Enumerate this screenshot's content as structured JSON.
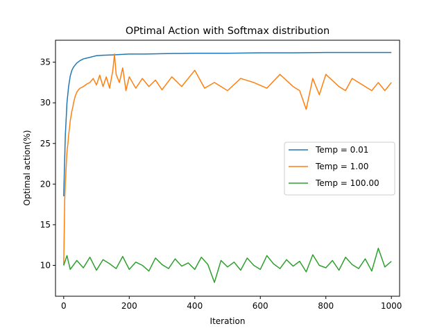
{
  "chart_data": {
    "type": "line",
    "title": "OPtimal Action with Softmax distribution",
    "xlabel": "Iteration",
    "ylabel": "Optimal action(%)",
    "xlim": [
      -25,
      1025
    ],
    "ylim": [
      6.2,
      37.7
    ],
    "xticks": [
      0,
      200,
      400,
      600,
      800,
      1000
    ],
    "yticks": [
      10,
      15,
      20,
      25,
      30,
      35
    ],
    "grid": false,
    "legend_position": "center-right",
    "series": [
      {
        "name": "Temp = 0.01",
        "color": "#1f77b4",
        "x": [
          0,
          5,
          10,
          15,
          20,
          25,
          30,
          40,
          50,
          60,
          70,
          80,
          90,
          100,
          120,
          150,
          200,
          250,
          300,
          400,
          500,
          600,
          700,
          800,
          900,
          1000
        ],
        "values": [
          18.5,
          26.0,
          30.0,
          32.0,
          33.3,
          34.0,
          34.4,
          34.9,
          35.2,
          35.4,
          35.5,
          35.6,
          35.7,
          35.8,
          35.85,
          35.9,
          36.0,
          36.0,
          36.05,
          36.1,
          36.1,
          36.15,
          36.15,
          36.2,
          36.2,
          36.2
        ]
      },
      {
        "name": "Temp = 1.00",
        "color": "#ff7f0e",
        "x": [
          0,
          3,
          5,
          8,
          10,
          13,
          15,
          18,
          20,
          23,
          25,
          28,
          30,
          35,
          40,
          45,
          50,
          60,
          70,
          80,
          90,
          100,
          110,
          120,
          130,
          140,
          150,
          155,
          160,
          170,
          180,
          190,
          200,
          220,
          240,
          260,
          280,
          300,
          330,
          360,
          400,
          430,
          460,
          500,
          540,
          580,
          620,
          660,
          700,
          720,
          740,
          760,
          780,
          800,
          840,
          860,
          880,
          900,
          940,
          960,
          980,
          1000
        ],
        "values": [
          10.0,
          18.0,
          20.0,
          22.5,
          24.0,
          25.0,
          26.0,
          27.0,
          27.8,
          28.5,
          29.0,
          29.5,
          30.0,
          30.8,
          31.3,
          31.6,
          31.8,
          32.0,
          32.3,
          32.5,
          33.0,
          32.2,
          33.4,
          32.0,
          33.2,
          31.8,
          34.0,
          36.0,
          33.5,
          32.5,
          34.3,
          31.5,
          33.2,
          31.8,
          33.0,
          32.0,
          32.8,
          31.6,
          33.2,
          32.0,
          34.0,
          31.8,
          32.5,
          31.5,
          33.0,
          32.5,
          31.8,
          33.5,
          32.0,
          31.5,
          29.2,
          33.0,
          31.0,
          33.5,
          32.0,
          31.5,
          33.0,
          32.5,
          31.5,
          32.5,
          31.5,
          32.5
        ]
      },
      {
        "name": "Temp = 100.00",
        "color": "#2ca02c",
        "x": [
          0,
          10,
          20,
          40,
          60,
          80,
          100,
          120,
          140,
          160,
          180,
          200,
          220,
          240,
          260,
          280,
          300,
          320,
          340,
          360,
          380,
          400,
          420,
          440,
          460,
          480,
          500,
          520,
          540,
          560,
          580,
          600,
          620,
          640,
          660,
          680,
          700,
          720,
          740,
          760,
          780,
          800,
          820,
          840,
          860,
          880,
          900,
          920,
          940,
          960,
          980,
          1000
        ],
        "values": [
          10.0,
          11.2,
          9.5,
          10.6,
          9.7,
          11.0,
          9.4,
          10.7,
          10.2,
          9.6,
          11.1,
          9.5,
          10.4,
          10.0,
          9.3,
          10.9,
          10.1,
          9.6,
          10.8,
          9.9,
          10.3,
          9.5,
          11.0,
          10.1,
          7.9,
          10.6,
          9.8,
          10.4,
          9.4,
          10.9,
          10.0,
          9.5,
          11.2,
          10.2,
          9.6,
          10.7,
          9.9,
          10.5,
          9.2,
          11.3,
          10.0,
          9.7,
          10.6,
          9.4,
          11.0,
          10.1,
          9.6,
          10.8,
          9.3,
          12.1,
          9.8,
          10.5
        ]
      }
    ]
  }
}
